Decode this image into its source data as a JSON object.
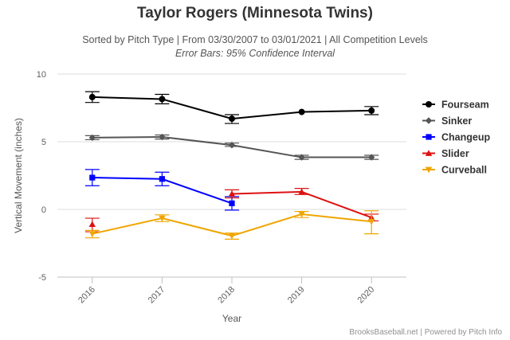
{
  "header": {
    "title": "Taylor Rogers (Minnesota Twins)",
    "subtitle": "Sorted by Pitch Type | From 03/30/2007 to 03/01/2021 | All Competition Levels",
    "subtitle2": "Error Bars: 95% Confidence Interval"
  },
  "credits": "BrooksBaseball.net | Powered by Pitch Info",
  "chart_data": {
    "type": "line",
    "title": "Taylor Rogers (Minnesota Twins)",
    "xlabel": "Year",
    "ylabel": "Vertical Movement (inches)",
    "categories": [
      "2016",
      "2017",
      "2018",
      "2019",
      "2020"
    ],
    "ylim": [
      -5,
      10
    ],
    "yticks": [
      -5,
      0,
      5,
      10
    ],
    "grid": true,
    "legend_position": "right",
    "series": [
      {
        "name": "Fourseam",
        "color": "#000000",
        "marker": "circle",
        "values": [
          8.3,
          8.15,
          6.7,
          7.2,
          7.3
        ],
        "error": [
          [
            7.9,
            8.7
          ],
          [
            7.8,
            8.5
          ],
          [
            6.35,
            7.0
          ],
          null,
          [
            7.0,
            7.6
          ]
        ]
      },
      {
        "name": "Sinker",
        "color": "#555555",
        "marker": "diamond",
        "values": [
          5.3,
          5.35,
          4.75,
          3.85,
          3.85
        ],
        "error": [
          [
            5.15,
            5.45
          ],
          [
            5.2,
            5.5
          ],
          [
            4.65,
            4.9
          ],
          [
            3.7,
            4.0
          ],
          [
            3.7,
            4.0
          ]
        ]
      },
      {
        "name": "Changeup",
        "color": "#0000ff",
        "marker": "square",
        "values": [
          2.35,
          2.25,
          0.45,
          null,
          null
        ],
        "error": [
          [
            1.75,
            2.95
          ],
          [
            1.75,
            2.75
          ],
          [
            -0.05,
            0.95
          ],
          null,
          null
        ]
      },
      {
        "name": "Slider",
        "color": "#dd1111",
        "marker": "triangle",
        "values": [
          -1.1,
          null,
          1.15,
          1.3,
          -0.6
        ],
        "error": [
          [
            -1.65,
            -0.65
          ],
          null,
          [
            0.85,
            1.45
          ],
          [
            1.1,
            1.55
          ],
          [
            -0.85,
            -0.35
          ]
        ]
      },
      {
        "name": "Curveball",
        "color": "#f0a500",
        "marker": "triangle-down",
        "values": [
          -1.8,
          -0.65,
          -1.95,
          -0.35,
          -0.9
        ],
        "error": [
          [
            -2.1,
            -1.55
          ],
          [
            -0.9,
            -0.4
          ],
          [
            -2.2,
            -1.75
          ],
          [
            -0.6,
            -0.15
          ],
          [
            -1.8,
            -0.1
          ]
        ]
      }
    ]
  }
}
